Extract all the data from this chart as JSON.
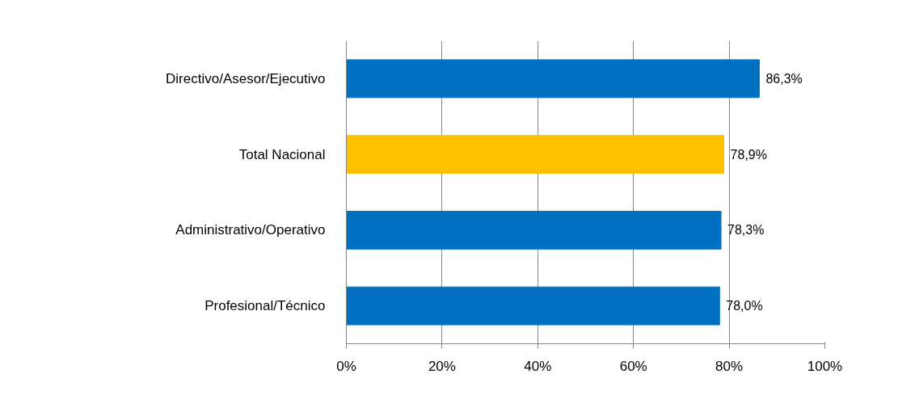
{
  "chart_data": {
    "type": "bar",
    "orientation": "horizontal",
    "categories": [
      "Directivo/Asesor/Ejecutivo",
      "Total Nacional",
      "Administrativo/Operativo",
      "Profesional/Técnico"
    ],
    "values": [
      86.3,
      78.9,
      78.3,
      78.0
    ],
    "colors": [
      "#0070c0",
      "#ffc000",
      "#0070c0",
      "#0070c0"
    ],
    "value_labels": [
      "86,3%",
      "78,9%",
      "78,3%",
      "78,0%"
    ],
    "xlim": [
      0,
      100
    ],
    "xticks": [
      {
        "value": 0,
        "label": "0%"
      },
      {
        "value": 20,
        "label": "20%"
      },
      {
        "value": 40,
        "label": "40%"
      },
      {
        "value": 60,
        "label": "60%"
      },
      {
        "value": 80,
        "label": "80%"
      },
      {
        "value": 100,
        "label": "100%"
      }
    ],
    "grid": "x"
  }
}
